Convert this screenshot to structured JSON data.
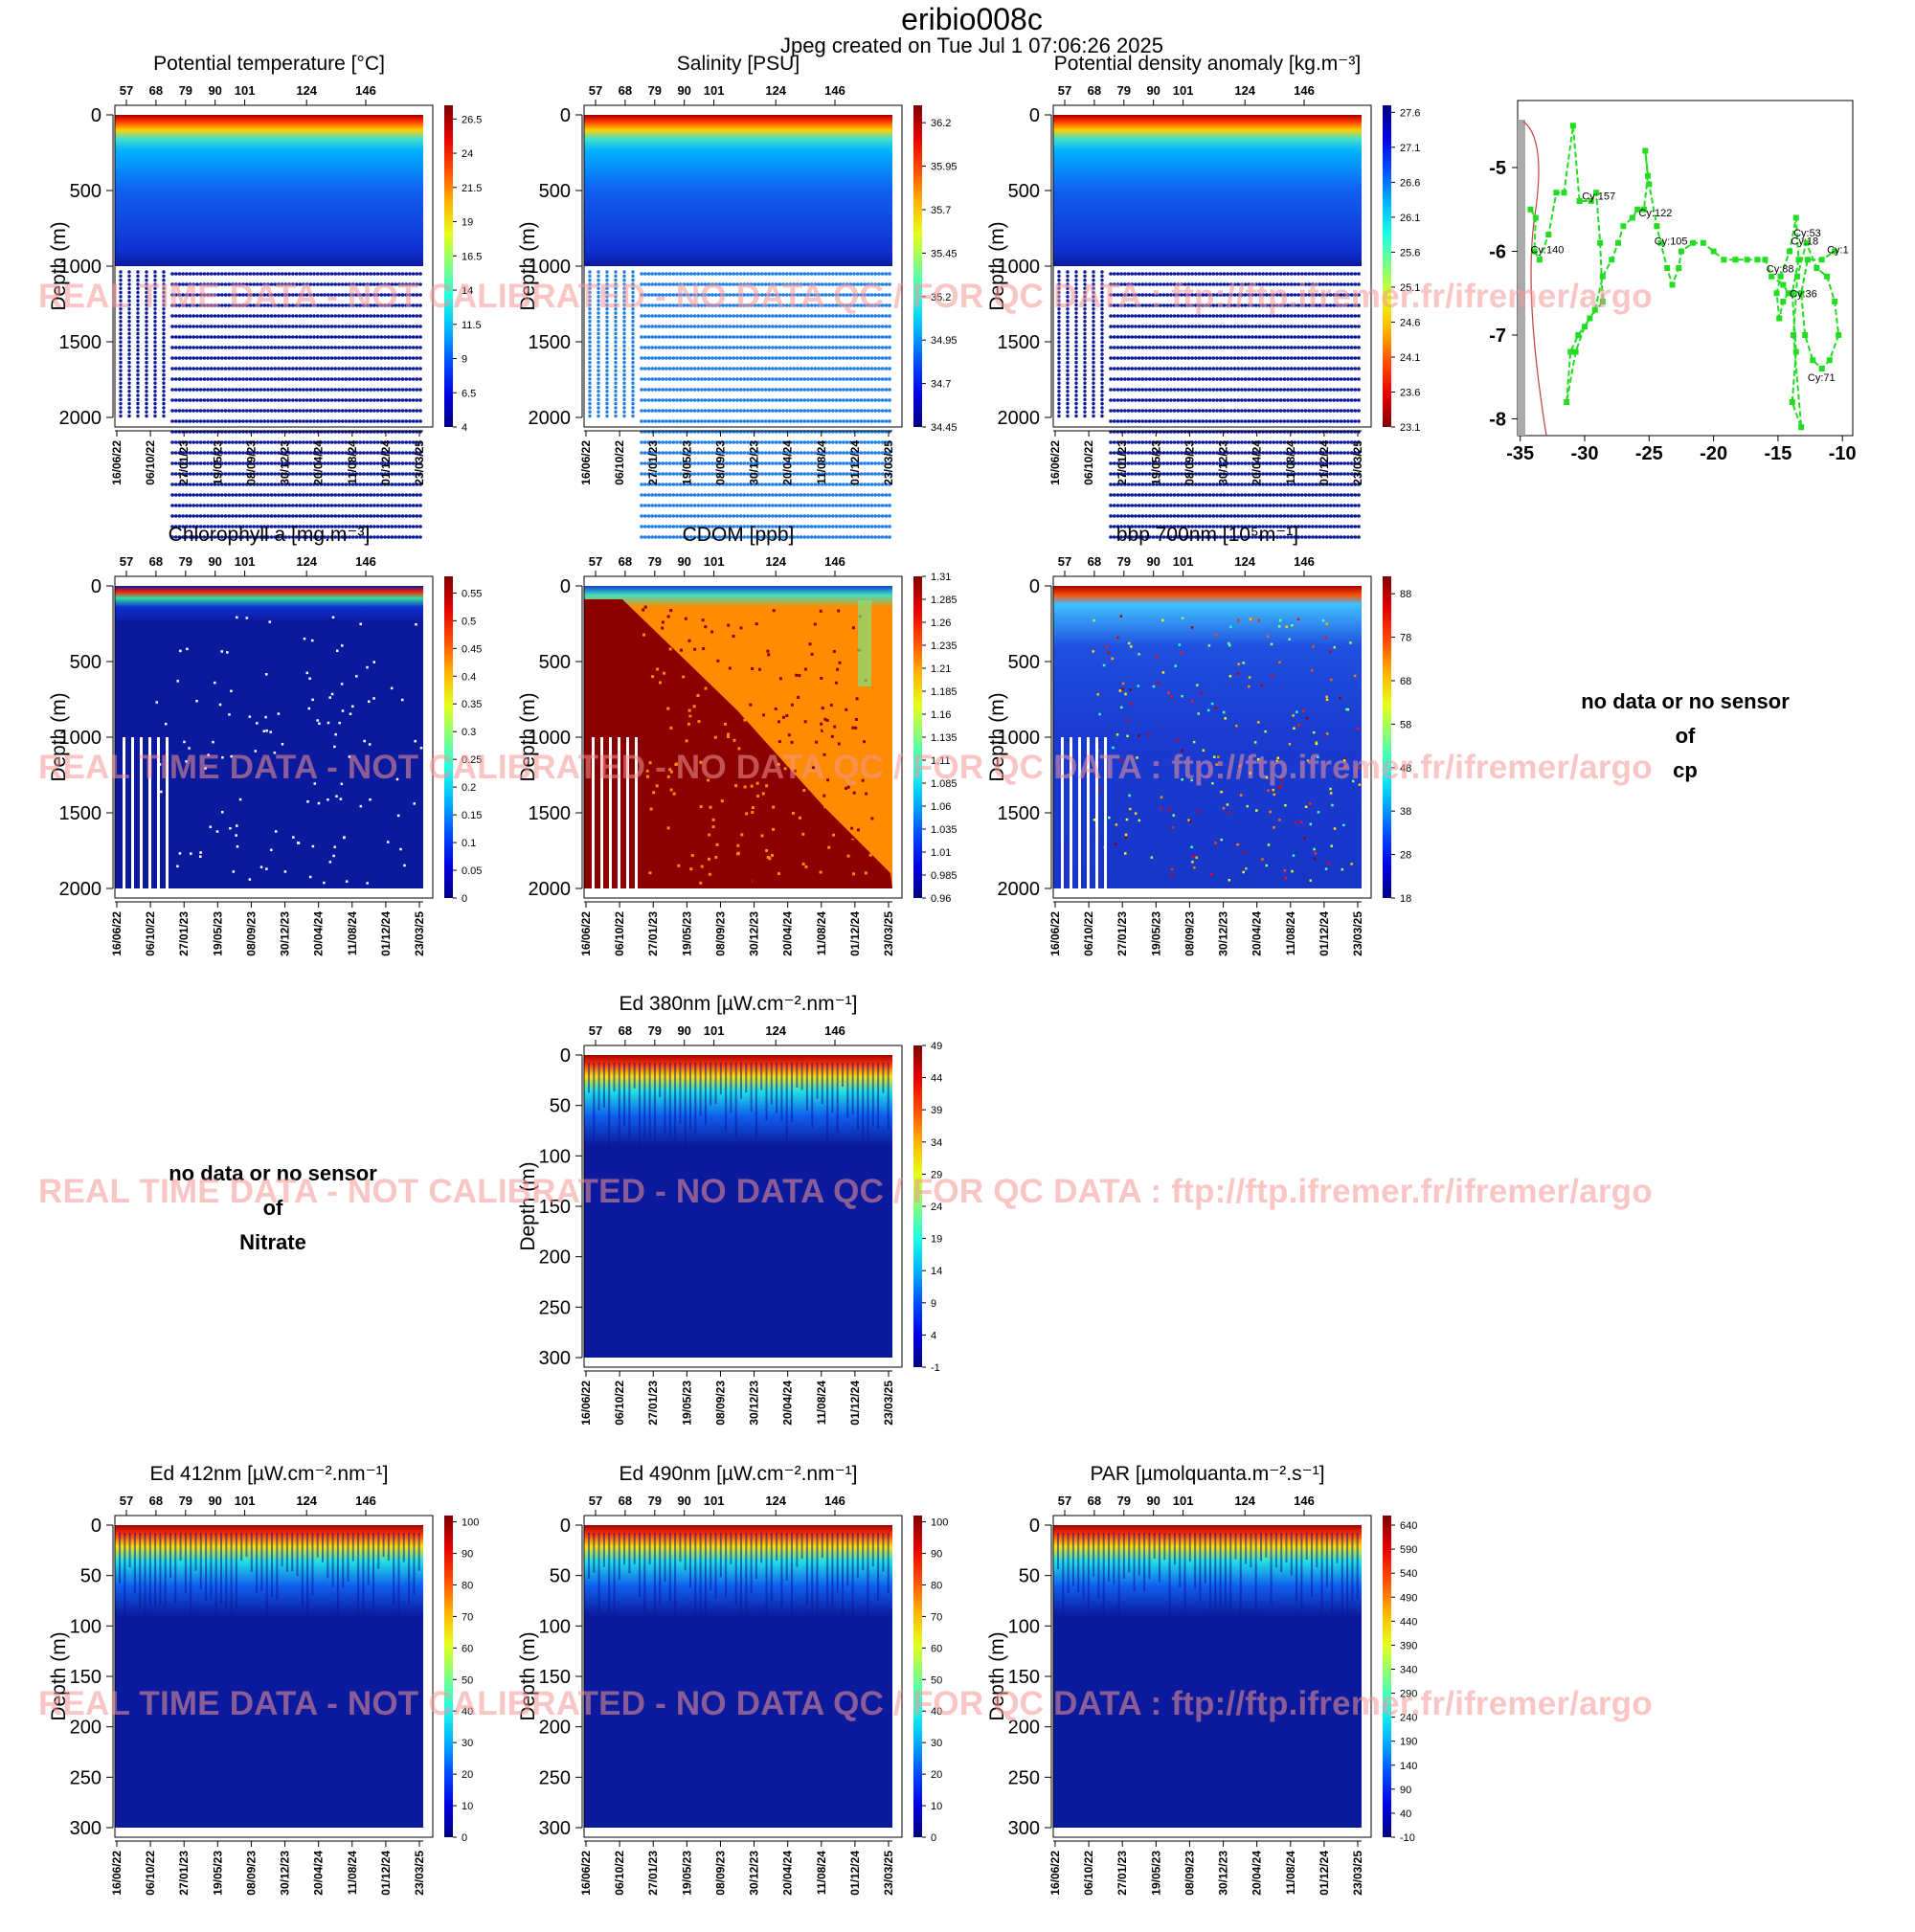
{
  "page": {
    "title": "eribio008c",
    "subtitle": "Jpeg created on  Tue Jul  1 07:06:26 2025",
    "watermark": "REAL TIME DATA - NOT CALIBRATED - NO DATA QC  /  FOR QC DATA : ftp://ftp.ifremer.fr/ifremer/argo",
    "no_data_prefix": "no data or no sensor",
    "no_data_of": "of"
  },
  "shared_axes": {
    "cycle_ticks": [
      "57",
      "68",
      "79",
      "90",
      "101",
      "124",
      "146"
    ],
    "date_ticks": [
      "16/06/22",
      "06/10/22",
      "27/01/23",
      "19/05/23",
      "08/09/23",
      "30/12/23",
      "20/04/24",
      "11/08/24",
      "01/12/24",
      "23/03/25"
    ],
    "ylabel": "Depth (m)"
  },
  "chart_data": [
    {
      "id": "potential-temperature",
      "type": "heatmap",
      "title": "Potential temperature [°C]",
      "ylabel": "Depth (m)",
      "depth_ticks": [
        "0",
        "500",
        "1000",
        "1500",
        "2000"
      ],
      "ylim": [
        0,
        2000
      ],
      "colorbar_ticks": [
        "4",
        "6.5",
        "9",
        "11.5",
        "14",
        "16.5",
        "19",
        "21.5",
        "24",
        "26.5"
      ],
      "colorbar_range": [
        4,
        27.5
      ],
      "pattern": "profile",
      "deep_color": "#0b1a9c"
    },
    {
      "id": "salinity",
      "type": "heatmap",
      "title": "Salinity [PSU]",
      "ylabel": "Depth (m)",
      "depth_ticks": [
        "0",
        "500",
        "1000",
        "1500",
        "2000"
      ],
      "ylim": [
        0,
        2000
      ],
      "colorbar_ticks": [
        "34.45",
        "34.7",
        "34.95",
        "35.2",
        "35.45",
        "35.7",
        "35.95",
        "36.2"
      ],
      "colorbar_range": [
        34.45,
        36.3
      ],
      "pattern": "profile",
      "deep_color": "#1f7fe6"
    },
    {
      "id": "potential-density-anomaly",
      "type": "heatmap",
      "title": "Potential density anomaly [kg.m⁻³]",
      "ylabel": "Depth (m)",
      "depth_ticks": [
        "0",
        "500",
        "1000",
        "1500",
        "2000"
      ],
      "ylim": [
        0,
        2000
      ],
      "colorbar_ticks": [
        "23.1",
        "23.6",
        "24.1",
        "24.6",
        "25.1",
        "25.6",
        "26.1",
        "26.6",
        "27.1",
        "27.6"
      ],
      "colorbar_range": [
        23.1,
        27.7
      ],
      "colorbar_reversed": true,
      "pattern": "profile",
      "deep_color": "#0b1a9c"
    },
    {
      "id": "chlorophyll-a",
      "type": "heatmap",
      "title": "Chlorophyll a [mg.m⁻³]",
      "ylabel": "Depth (m)",
      "depth_ticks": [
        "0",
        "500",
        "1000",
        "1500",
        "2000"
      ],
      "ylim": [
        0,
        2000
      ],
      "colorbar_ticks": [
        "0",
        "0.05",
        "0.1",
        "0.15",
        "0.2",
        "0.25",
        "0.3",
        "0.35",
        "0.4",
        "0.45",
        "0.5",
        "0.55"
      ],
      "colorbar_range": [
        0,
        0.58
      ],
      "pattern": "surface",
      "deep_color": "#0b1a9c"
    },
    {
      "id": "cdom",
      "type": "heatmap",
      "title": "CDOM  [ppb]",
      "ylabel": "Depth (m)",
      "depth_ticks": [
        "0",
        "500",
        "1000",
        "1500",
        "2000"
      ],
      "ylim": [
        0,
        2000
      ],
      "colorbar_ticks": [
        "0.96",
        "0.985",
        "1.01",
        "1.035",
        "1.06",
        "1.085",
        "1.11",
        "1.135",
        "1.16",
        "1.185",
        "1.21",
        "1.235",
        "1.26",
        "1.285",
        "1.31"
      ],
      "colorbar_range": [
        0.96,
        1.31
      ],
      "pattern": "cdom",
      "deep_color": "#8b0000"
    },
    {
      "id": "bbp-700nm",
      "type": "heatmap",
      "title": "bbp 700nm [10⁵m⁻¹]",
      "ylabel": "Depth (m)",
      "depth_ticks": [
        "0",
        "500",
        "1000",
        "1500",
        "2000"
      ],
      "ylim": [
        0,
        2000
      ],
      "colorbar_ticks": [
        "18",
        "28",
        "38",
        "48",
        "58",
        "68",
        "78",
        "88"
      ],
      "colorbar_range": [
        18,
        92
      ],
      "pattern": "speckle",
      "deep_color": "#1736c8"
    },
    {
      "id": "ed-380nm",
      "type": "heatmap",
      "title": "Ed 380nm [µW.cm⁻².nm⁻¹]",
      "ylabel": "Depth (m)",
      "depth_ticks": [
        "0",
        "50",
        "100",
        "150",
        "200",
        "250",
        "300"
      ],
      "ylim": [
        0,
        300
      ],
      "colorbar_ticks": [
        "-1",
        "4",
        "9",
        "14",
        "19",
        "24",
        "29",
        "34",
        "39",
        "44",
        "49"
      ],
      "colorbar_range": [
        -1,
        49
      ],
      "pattern": "light",
      "deep_color": "#0b1a9c"
    },
    {
      "id": "ed-412nm",
      "type": "heatmap",
      "title": "Ed 412nm [µW.cm⁻².nm⁻¹]",
      "ylabel": "Depth (m)",
      "depth_ticks": [
        "0",
        "50",
        "100",
        "150",
        "200",
        "250",
        "300"
      ],
      "ylim": [
        0,
        300
      ],
      "colorbar_ticks": [
        "0",
        "10",
        "20",
        "30",
        "40",
        "50",
        "60",
        "70",
        "80",
        "90",
        "100"
      ],
      "colorbar_range": [
        0,
        102
      ],
      "pattern": "light",
      "deep_color": "#0b1a9c"
    },
    {
      "id": "ed-490nm",
      "type": "heatmap",
      "title": "Ed 490nm [µW.cm⁻².nm⁻¹]",
      "ylabel": "Depth (m)",
      "depth_ticks": [
        "0",
        "50",
        "100",
        "150",
        "200",
        "250",
        "300"
      ],
      "ylim": [
        0,
        300
      ],
      "colorbar_ticks": [
        "0",
        "10",
        "20",
        "30",
        "40",
        "50",
        "60",
        "70",
        "80",
        "90",
        "100"
      ],
      "colorbar_range": [
        0,
        102
      ],
      "pattern": "light",
      "deep_color": "#0b1a9c"
    },
    {
      "id": "par",
      "type": "heatmap",
      "title": "PAR [µmolquanta.m⁻².s⁻¹]",
      "ylabel": "Depth (m)",
      "depth_ticks": [
        "0",
        "50",
        "100",
        "150",
        "200",
        "250",
        "300"
      ],
      "ylim": [
        0,
        300
      ],
      "colorbar_ticks": [
        "-10",
        "40",
        "90",
        "140",
        "190",
        "240",
        "290",
        "340",
        "390",
        "440",
        "490",
        "540",
        "590",
        "640"
      ],
      "colorbar_range": [
        -10,
        660
      ],
      "pattern": "light",
      "deep_color": "#0b1a9c"
    }
  ],
  "map": {
    "type": "scatter",
    "xlim": [
      -35.2,
      -9.2
    ],
    "ylim": [
      -8.2,
      -4.2
    ],
    "x_ticks": [
      "-35",
      "-30",
      "-25",
      "-20",
      "-15",
      "-10"
    ],
    "y_ticks": [
      "-5",
      "-6",
      "-7",
      "-8"
    ],
    "track_color": "#22dd22",
    "track": [
      [
        -34.2,
        -5.5
      ],
      [
        -33.8,
        -5.6
      ],
      [
        -33.9,
        -6.0
      ],
      [
        -33.5,
        -6.1
      ],
      [
        -32.8,
        -5.8
      ],
      [
        -32.2,
        -5.3
      ],
      [
        -31.6,
        -5.3
      ],
      [
        -30.9,
        -4.5
      ],
      [
        -30.4,
        -5.4
      ],
      [
        -29.5,
        -5.4
      ],
      [
        -29.1,
        -5.3
      ],
      [
        -28.8,
        -5.9
      ],
      [
        -28.6,
        -6.6
      ],
      [
        -29.6,
        -6.8
      ],
      [
        -30.5,
        -7.0
      ],
      [
        -31.1,
        -7.2
      ],
      [
        -31.4,
        -7.8
      ],
      [
        -30.7,
        -7.2
      ],
      [
        -30.0,
        -6.9
      ],
      [
        -29.2,
        -6.7
      ],
      [
        -28.6,
        -6.3
      ],
      [
        -27.9,
        -6.1
      ],
      [
        -27.4,
        -5.9
      ],
      [
        -27.0,
        -5.7
      ],
      [
        -26.3,
        -5.6
      ],
      [
        -25.9,
        -5.5
      ],
      [
        -25.4,
        -5.5
      ],
      [
        -25.1,
        -5.1
      ],
      [
        -25.3,
        -4.8
      ],
      [
        -25.0,
        -5.2
      ],
      [
        -24.4,
        -5.7
      ],
      [
        -24.1,
        -5.9
      ],
      [
        -23.6,
        -6.2
      ],
      [
        -23.2,
        -6.4
      ],
      [
        -22.7,
        -6.2
      ],
      [
        -22.5,
        -6.0
      ],
      [
        -21.6,
        -5.9
      ],
      [
        -20.8,
        -5.9
      ],
      [
        -20.0,
        -6.0
      ],
      [
        -19.2,
        -6.1
      ],
      [
        -18.3,
        -6.1
      ],
      [
        -17.4,
        -6.1
      ],
      [
        -16.6,
        -6.1
      ],
      [
        -16.0,
        -6.1
      ],
      [
        -15.5,
        -6.3
      ],
      [
        -14.6,
        -6.4
      ],
      [
        -14.2,
        -6.5
      ],
      [
        -14.6,
        -6.6
      ],
      [
        -14.9,
        -6.8
      ],
      [
        -15.1,
        -6.5
      ],
      [
        -14.8,
        -6.3
      ],
      [
        -14.1,
        -6.0
      ],
      [
        -13.6,
        -5.6
      ],
      [
        -13.4,
        -6.1
      ],
      [
        -13.9,
        -6.5
      ],
      [
        -13.6,
        -7.2
      ],
      [
        -13.9,
        -7.8
      ],
      [
        -13.2,
        -8.1
      ],
      [
        -13.8,
        -7.0
      ],
      [
        -13.5,
        -6.3
      ],
      [
        -12.8,
        -5.9
      ],
      [
        -12.0,
        -6.2
      ],
      [
        -11.2,
        -6.3
      ],
      [
        -10.6,
        -6.6
      ],
      [
        -10.3,
        -7.0
      ],
      [
        -11.0,
        -7.3
      ],
      [
        -11.6,
        -7.4
      ],
      [
        -12.3,
        -7.3
      ],
      [
        -12.9,
        -7.0
      ],
      [
        -13.2,
        -6.5
      ],
      [
        -12.7,
        -6.1
      ],
      [
        -11.6,
        -6.1
      ],
      [
        -10.6,
        -6.0
      ]
    ],
    "labels": [
      {
        "text": "Cy:157",
        "x": -30.2,
        "y": -5.38
      },
      {
        "text": "Cy:122",
        "x": -25.8,
        "y": -5.58
      },
      {
        "text": "Cy:105",
        "x": -24.6,
        "y": -5.92
      },
      {
        "text": "Cy:140",
        "x": -34.2,
        "y": -6.02
      },
      {
        "text": "Cy:53",
        "x": -13.8,
        "y": -5.82
      },
      {
        "text": "Cy:18",
        "x": -14.0,
        "y": -5.92
      },
      {
        "text": "Cy:1",
        "x": -11.2,
        "y": -6.02
      },
      {
        "text": "Cy:88",
        "x": -15.9,
        "y": -6.25
      },
      {
        "text": "Cy:36",
        "x": -14.1,
        "y": -6.55
      },
      {
        "text": "Cy:71",
        "x": -12.7,
        "y": -7.55
      }
    ]
  },
  "no_data_panels": [
    {
      "id": "no-data-cp",
      "variable": "cp"
    },
    {
      "id": "no-data-nitrate",
      "variable": "Nitrate"
    }
  ]
}
